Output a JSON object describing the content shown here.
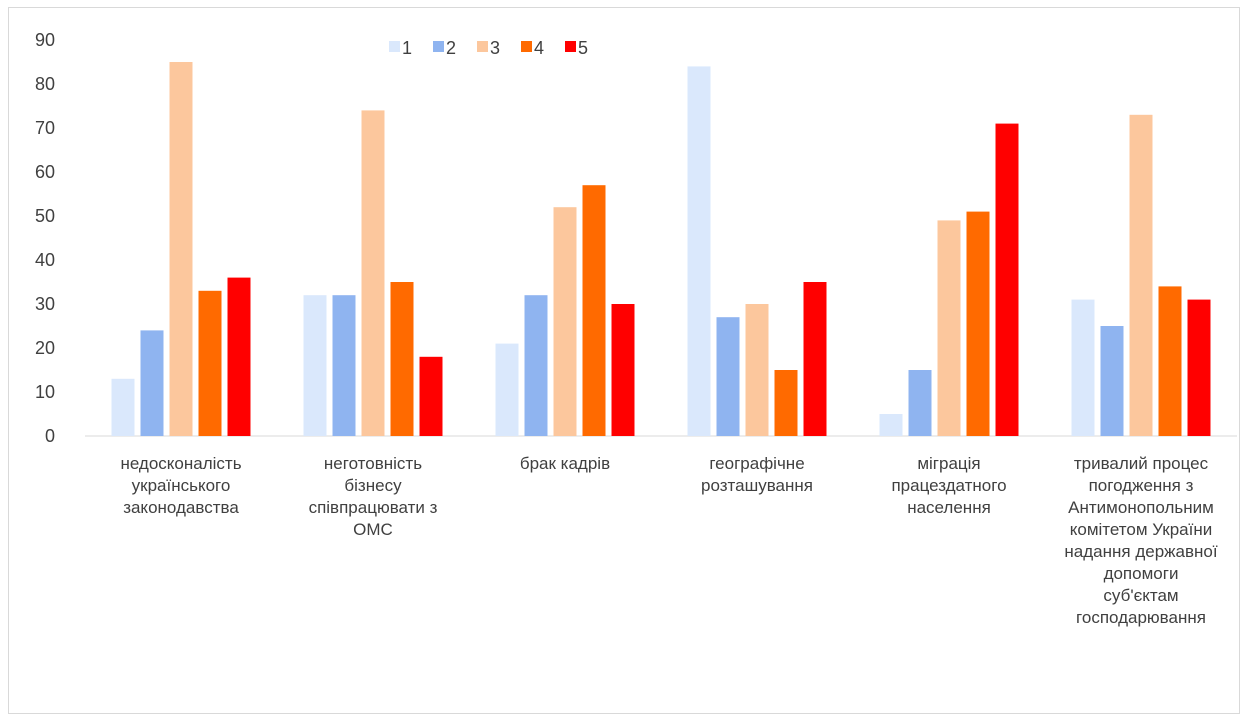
{
  "chart_data": {
    "type": "bar",
    "categories": [
      [
        "недосконалість",
        "українського",
        "законодавства"
      ],
      [
        "неготовність",
        "бізнесу",
        "співпрацювати з",
        "ОМС"
      ],
      [
        "брак кадрів"
      ],
      [
        "географічне",
        "розташування"
      ],
      [
        "міграція",
        "працездатного",
        "населення"
      ],
      [
        "тривалий процес",
        "погодження з",
        "Антимонопольним",
        "комітетом України",
        "надання державної",
        "допомоги",
        "суб'єктам",
        "господарювання"
      ]
    ],
    "series": [
      {
        "name": "1",
        "color": "#dae8fc",
        "values": [
          13,
          32,
          21,
          84,
          5,
          31
        ]
      },
      {
        "name": "2",
        "color": "#8fb4f0",
        "values": [
          24,
          32,
          32,
          27,
          15,
          25
        ]
      },
      {
        "name": "3",
        "color": "#fcc79d",
        "values": [
          85,
          74,
          52,
          30,
          49,
          73
        ]
      },
      {
        "name": "4",
        "color": "#ff6a00",
        "values": [
          33,
          35,
          57,
          15,
          51,
          34
        ]
      },
      {
        "name": "5",
        "color": "#ff0000",
        "values": [
          36,
          18,
          30,
          35,
          71,
          31
        ]
      }
    ],
    "ylim": [
      0,
      90
    ],
    "yticks": [
      "0",
      "10",
      "20",
      "30",
      "40",
      "50",
      "60",
      "70",
      "80",
      "90"
    ],
    "grid": false,
    "legend": "top"
  }
}
